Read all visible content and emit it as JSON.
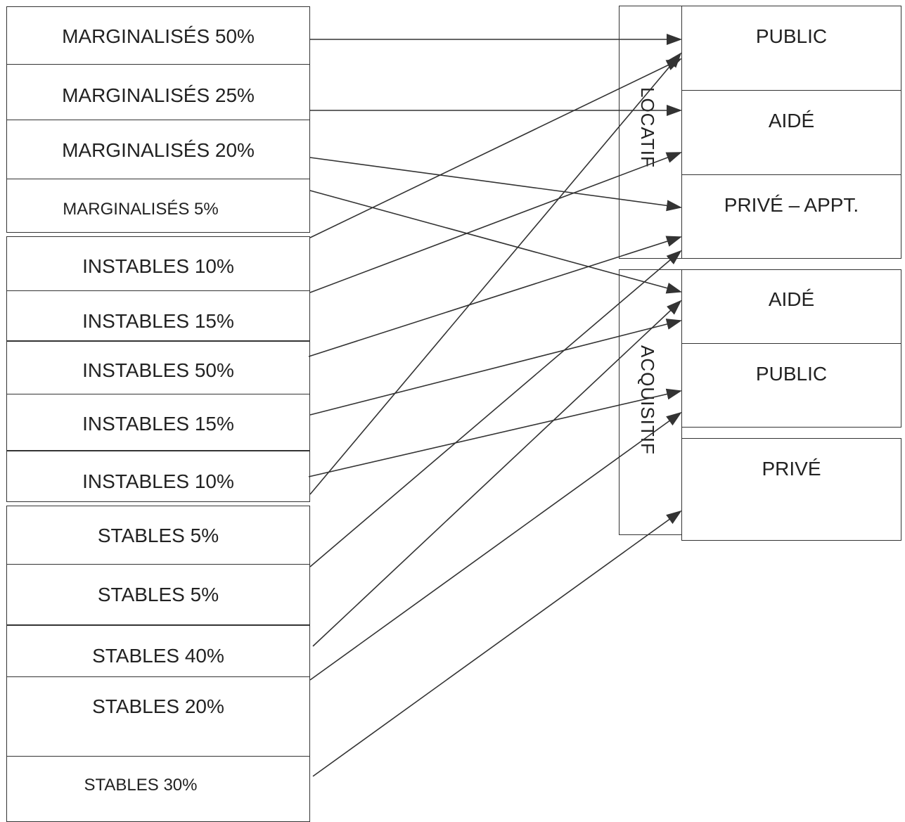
{
  "sources": [
    "MARGINALISÉS 50%",
    "MARGINALISÉS 25%",
    "MARGINALISÉS 20%",
    "MARGINALISÉS 5%",
    "INSTABLES 10%",
    "INSTABLES 15%",
    "INSTABLES 50%",
    "INSTABLES 15%",
    "INSTABLES 10%",
    "STABLES 5%",
    "STABLES 5%",
    "STABLES 40%",
    "STABLES 20%",
    "STABLES 30%"
  ],
  "groups": {
    "locatif": {
      "label": "LOCATIF",
      "items": [
        "PUBLIC",
        "AIDÉ",
        "PRIVÉ – APPT."
      ]
    },
    "acquisitif": {
      "label": "ACQUISITIF",
      "items": [
        "AIDÉ",
        "PUBLIC",
        "PRIVÉ"
      ]
    }
  }
}
